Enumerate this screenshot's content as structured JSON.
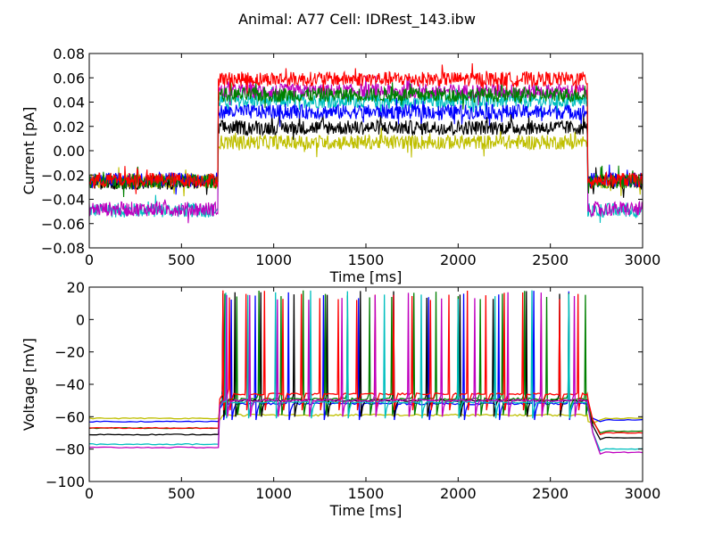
{
  "figure": {
    "title": "Animal: A77 Cell: IDRest_143.ibw"
  },
  "colors": {
    "blue": "#0000ff",
    "green": "#008000",
    "red": "#ff0000",
    "cyan": "#00bfbf",
    "magenta": "#bf00bf",
    "yellow": "#bfbf00",
    "black": "#000000"
  },
  "chart_data": [
    {
      "type": "line",
      "xlabel": "Time [ms]",
      "ylabel": "Current [pA]",
      "xlim": [
        0,
        3000
      ],
      "ylim": [
        -0.08,
        0.08
      ],
      "xticks": [
        "0",
        "500",
        "1000",
        "1500",
        "2000",
        "2500",
        "3000"
      ],
      "yticks": [
        "−0.08",
        "−0.06",
        "−0.04",
        "−0.02",
        "0.00",
        "0.02",
        "0.04",
        "0.06",
        "0.08"
      ],
      "grid": false,
      "stimulus_on": 700,
      "stimulus_off": 2700,
      "noise_amplitude": 0.006,
      "series": [
        {
          "color": "cyan",
          "baseline": -0.049,
          "step": 0.041
        },
        {
          "color": "magenta",
          "baseline": -0.048,
          "step": 0.049
        },
        {
          "color": "yellow",
          "baseline": -0.025,
          "step": 0.007
        },
        {
          "color": "black",
          "baseline": -0.026,
          "step": 0.019
        },
        {
          "color": "blue",
          "baseline": -0.024,
          "step": 0.032
        },
        {
          "color": "green",
          "baseline": -0.025,
          "step": 0.046
        },
        {
          "color": "red",
          "baseline": -0.024,
          "step": 0.059
        }
      ]
    },
    {
      "type": "line",
      "xlabel": "Time [ms]",
      "ylabel": "Voltage [mV]",
      "xlim": [
        0,
        3000
      ],
      "ylim": [
        -100,
        20
      ],
      "xticks": [
        "0",
        "500",
        "1000",
        "1500",
        "2000",
        "2500",
        "3000"
      ],
      "yticks": [
        "−100",
        "−80",
        "−60",
        "−40",
        "−20",
        "0",
        "20"
      ],
      "grid": false,
      "stimulus_on": 700,
      "stimulus_off": 2700,
      "spike_peak": 15,
      "series": [
        {
          "color": "yellow",
          "rest": -61,
          "plateau": -59,
          "after": -61,
          "spikes": []
        },
        {
          "color": "blue",
          "rest": -63,
          "plateau": -52,
          "after": -62,
          "spikes": [
            720,
            770,
            900,
            1080,
            1270,
            1460,
            1650,
            1840,
            2030,
            2220,
            2410,
            2600
          ]
        },
        {
          "color": "black",
          "rest": -71,
          "plateau": -50,
          "after": -73,
          "spikes": [
            725,
            790,
            930,
            1110,
            1290,
            1470,
            1650,
            1830,
            2010,
            2190,
            2370,
            2550
          ]
        },
        {
          "color": "green",
          "rest": -67,
          "plateau": -49,
          "after": -69,
          "spikes": [
            735,
            800,
            920,
            1040,
            1160,
            1280,
            1400,
            1520,
            1640,
            1760,
            1880,
            2000,
            2120,
            2240,
            2360,
            2480,
            2600,
            2690
          ]
        },
        {
          "color": "red",
          "rest": -67,
          "plateau": -46,
          "after": -70,
          "spikes": [
            715,
            760,
            850,
            950,
            1050,
            1150,
            1250,
            1350,
            1450,
            1550,
            1650,
            1750,
            1850,
            1950,
            2050,
            2150,
            2250,
            2350,
            2450,
            2550,
            2650
          ]
        },
        {
          "color": "cyan",
          "rest": -77,
          "plateau": -51,
          "after": -80,
          "spikes": [
            740,
            860,
            1010,
            1200,
            1400,
            1600,
            1800,
            2000,
            2200,
            2400,
            2600
          ]
        },
        {
          "color": "magenta",
          "rest": -79,
          "plateau": -50,
          "after": -82,
          "spikes": [
            745,
            870,
            1020,
            1190,
            1370,
            1550,
            1730,
            1910,
            2090,
            2270,
            2450,
            2630
          ]
        }
      ]
    }
  ]
}
